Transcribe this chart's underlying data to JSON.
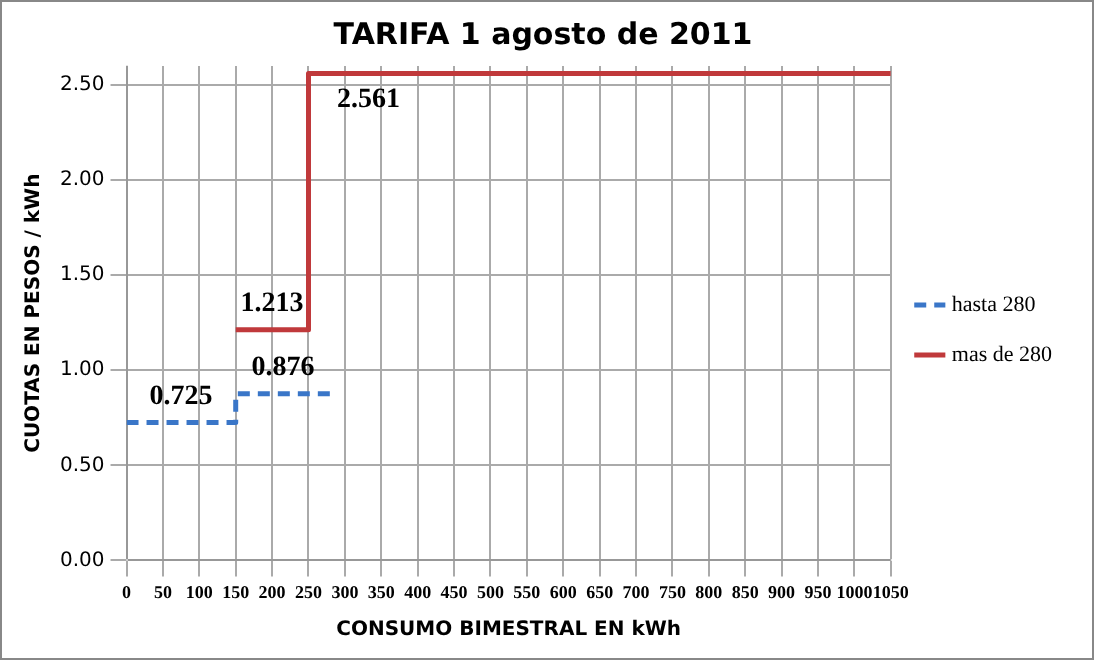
{
  "chart_data": {
    "type": "step",
    "title": "TARIFA 1 agosto de 2011",
    "xlabel": "CONSUMO BIMESTRAL EN kWh",
    "ylabel": "CUOTAS EN PESOS / kWh",
    "series": [
      {
        "name": "hasta 280",
        "color": "#3a76c8",
        "line_style": "dashed",
        "x": [
          0,
          150,
          280
        ],
        "values": [
          0.725,
          0.876,
          0.876
        ],
        "value_labels": [
          "0.725",
          "0.876",
          null
        ]
      },
      {
        "name": "mas de 280",
        "color": "#c0393b",
        "line_style": "solid",
        "x": [
          150,
          250,
          1050
        ],
        "values": [
          1.213,
          2.561,
          2.561
        ],
        "value_labels": [
          "1.213",
          "2.561",
          null
        ]
      }
    ],
    "xlim": [
      0,
      1050
    ],
    "xticks": [
      0,
      50,
      100,
      150,
      200,
      250,
      300,
      350,
      400,
      450,
      500,
      550,
      600,
      650,
      700,
      750,
      800,
      850,
      900,
      950,
      1000,
      1050
    ],
    "ylim": [
      0,
      2.6
    ],
    "yticks": [
      {
        "value": 0,
        "label": "0.00"
      },
      {
        "value": 0.5,
        "label": "0.50"
      },
      {
        "value": 1,
        "label": "1.00"
      },
      {
        "value": 1.5,
        "label": "1.50"
      },
      {
        "value": 2,
        "label": "2.00"
      },
      {
        "value": 2.5,
        "label": "2.50"
      }
    ],
    "grid": true,
    "legend": "right",
    "marker": "none"
  }
}
